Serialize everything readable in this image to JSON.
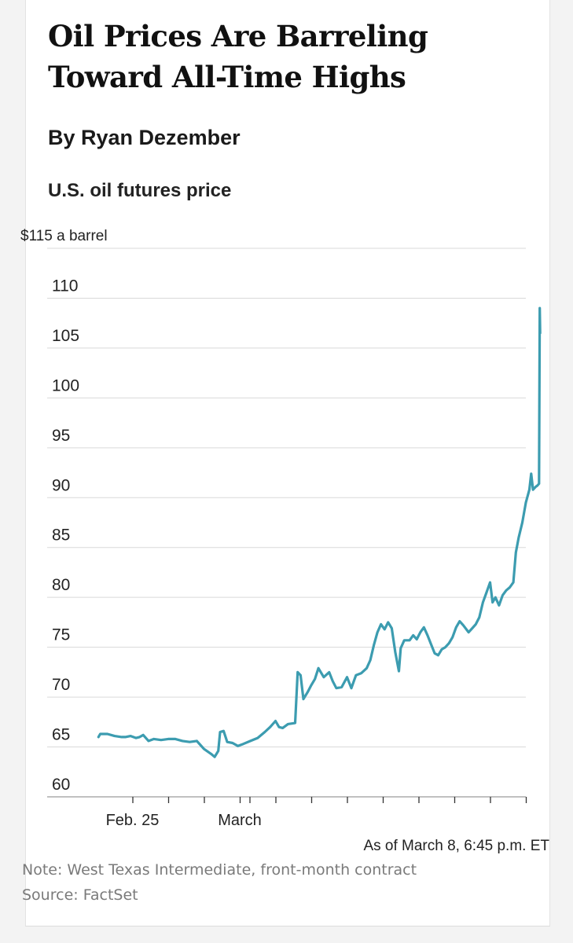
{
  "article": {
    "headline": "Oil Prices Are Barreling Toward All-Time Highs",
    "byline": "By Ryan Dezember"
  },
  "chart_data": {
    "type": "line",
    "title": "U.S. oil futures price",
    "unit_label": "$115 a barrel",
    "ylabel": "",
    "xlabel": "",
    "ylim": [
      60,
      115
    ],
    "y_ticks": [
      60,
      65,
      70,
      75,
      80,
      85,
      90,
      95,
      100,
      105,
      110
    ],
    "x_range": [
      0,
      12
    ],
    "x_ticks": [
      1,
      2,
      3,
      4,
      5,
      6,
      7,
      8,
      9,
      10,
      11,
      12
    ],
    "x_tick_labels": [
      {
        "x": 1,
        "label": "Feb. 25"
      },
      {
        "x": 4,
        "label": "March"
      }
    ],
    "grid": true,
    "line_color": "#3c9cb0",
    "series": [
      {
        "name": "West Texas Intermediate",
        "points": [
          [
            0.05,
            66.0
          ],
          [
            0.1,
            66.3
          ],
          [
            0.3,
            66.3
          ],
          [
            0.5,
            66.1
          ],
          [
            0.7,
            66.0
          ],
          [
            0.8,
            66.0
          ],
          [
            0.95,
            66.1
          ],
          [
            1.1,
            65.9
          ],
          [
            1.2,
            66.0
          ],
          [
            1.3,
            66.2
          ],
          [
            1.45,
            65.6
          ],
          [
            1.6,
            65.8
          ],
          [
            1.8,
            65.7
          ],
          [
            2.0,
            65.8
          ],
          [
            2.2,
            65.8
          ],
          [
            2.4,
            65.6
          ],
          [
            2.6,
            65.5
          ],
          [
            2.8,
            65.6
          ],
          [
            3.0,
            64.8
          ],
          [
            3.2,
            64.3
          ],
          [
            3.3,
            64.0
          ],
          [
            3.4,
            64.6
          ],
          [
            3.45,
            66.5
          ],
          [
            3.55,
            66.6
          ],
          [
            3.65,
            65.5
          ],
          [
            3.8,
            65.4
          ],
          [
            3.95,
            65.1
          ],
          [
            4.1,
            65.3
          ],
          [
            4.3,
            65.6
          ],
          [
            4.5,
            65.9
          ],
          [
            4.7,
            66.5
          ],
          [
            4.85,
            67.0
          ],
          [
            5.0,
            67.6
          ],
          [
            5.1,
            67.0
          ],
          [
            5.2,
            66.9
          ],
          [
            5.35,
            67.3
          ],
          [
            5.55,
            67.4
          ],
          [
            5.62,
            72.5
          ],
          [
            5.7,
            72.2
          ],
          [
            5.78,
            69.8
          ],
          [
            5.9,
            70.5
          ],
          [
            6.0,
            71.2
          ],
          [
            6.1,
            71.8
          ],
          [
            6.2,
            72.9
          ],
          [
            6.35,
            72.0
          ],
          [
            6.5,
            72.5
          ],
          [
            6.6,
            71.6
          ],
          [
            6.7,
            70.9
          ],
          [
            6.85,
            71.0
          ],
          [
            7.0,
            72.0
          ],
          [
            7.12,
            70.9
          ],
          [
            7.25,
            72.2
          ],
          [
            7.4,
            72.4
          ],
          [
            7.55,
            72.9
          ],
          [
            7.65,
            73.7
          ],
          [
            7.75,
            75.2
          ],
          [
            7.85,
            76.5
          ],
          [
            7.95,
            77.3
          ],
          [
            8.05,
            76.8
          ],
          [
            8.15,
            77.5
          ],
          [
            8.25,
            76.9
          ],
          [
            8.35,
            74.5
          ],
          [
            8.45,
            72.6
          ],
          [
            8.5,
            74.9
          ],
          [
            8.6,
            75.7
          ],
          [
            8.75,
            75.7
          ],
          [
            8.85,
            76.2
          ],
          [
            8.95,
            75.8
          ],
          [
            9.05,
            76.5
          ],
          [
            9.15,
            77.0
          ],
          [
            9.25,
            76.2
          ],
          [
            9.35,
            75.3
          ],
          [
            9.45,
            74.4
          ],
          [
            9.55,
            74.2
          ],
          [
            9.65,
            74.8
          ],
          [
            9.75,
            75.0
          ],
          [
            9.85,
            75.4
          ],
          [
            9.95,
            76.0
          ],
          [
            10.05,
            77.0
          ],
          [
            10.15,
            77.6
          ],
          [
            10.25,
            77.2
          ],
          [
            10.4,
            76.5
          ],
          [
            10.5,
            76.9
          ],
          [
            10.6,
            77.3
          ],
          [
            10.7,
            78.0
          ],
          [
            10.8,
            79.5
          ],
          [
            10.9,
            80.5
          ],
          [
            11.0,
            81.5
          ],
          [
            11.07,
            79.5
          ],
          [
            11.15,
            80.0
          ],
          [
            11.25,
            79.2
          ],
          [
            11.35,
            80.2
          ],
          [
            11.45,
            80.7
          ],
          [
            11.55,
            81.0
          ],
          [
            11.65,
            81.5
          ],
          [
            11.72,
            84.5
          ],
          [
            11.8,
            86.0
          ],
          [
            11.9,
            87.5
          ],
          [
            12.0,
            89.5
          ],
          [
            12.1,
            90.8
          ],
          [
            12.15,
            92.4
          ],
          [
            12.2,
            90.8
          ],
          [
            12.28,
            91.1
          ],
          [
            12.32,
            91.2
          ],
          [
            12.37,
            91.4
          ],
          [
            12.39,
            109.0
          ],
          [
            12.4,
            106.5
          ]
        ]
      }
    ]
  },
  "footer": {
    "as_of": "As of March 8, 6:45 p.m. ET",
    "note": "Note: West Texas Intermediate, front-month contract",
    "source": "Source: FactSet"
  }
}
